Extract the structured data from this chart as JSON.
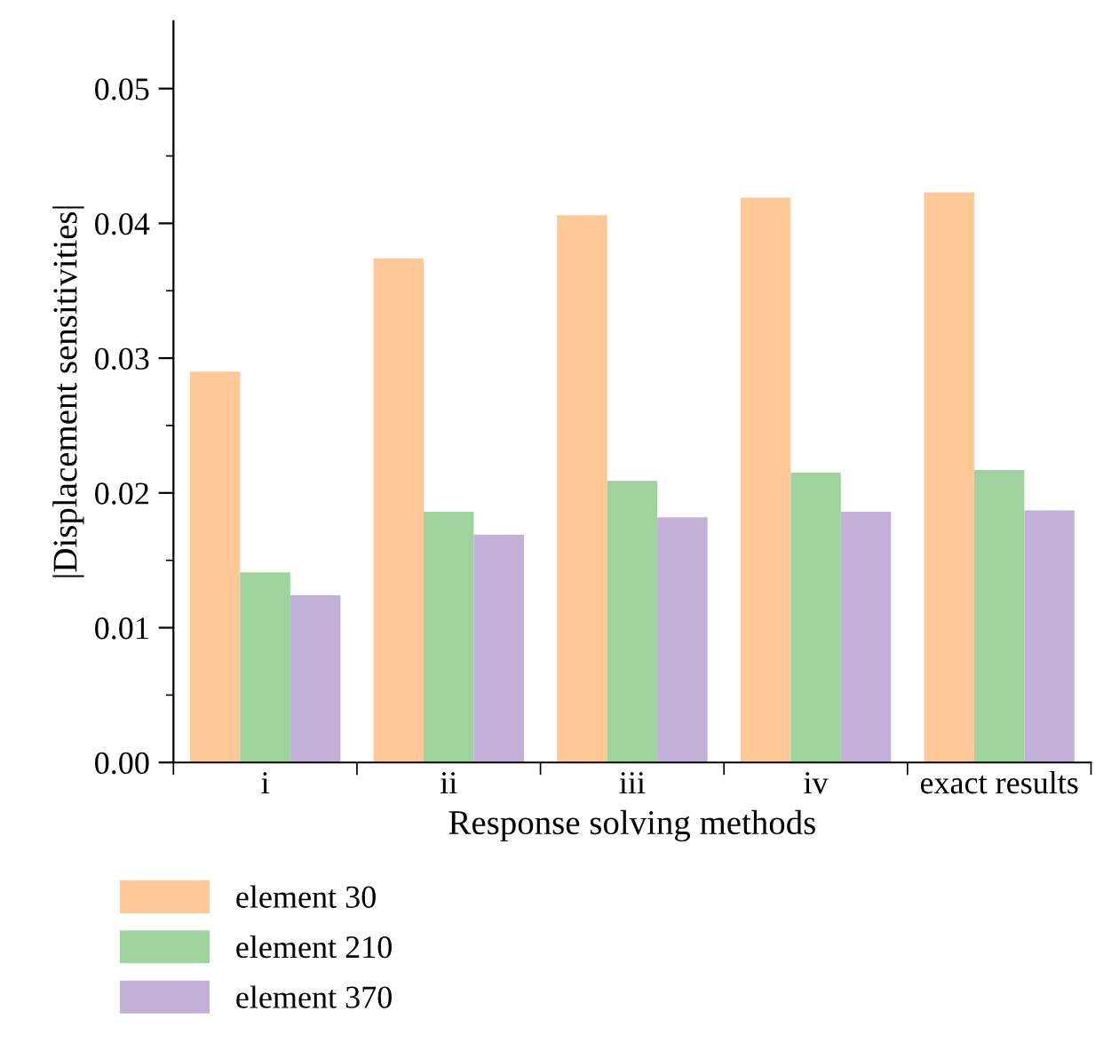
{
  "chart_data": {
    "type": "bar",
    "xlabel": "Response solving methods",
    "ylabel": "|Displacement sensitivities|",
    "categories": [
      "i",
      "ii",
      "iii",
      "iv",
      "exact results"
    ],
    "series": [
      {
        "name": "element 30",
        "color": "#ffc896",
        "values": [
          0.029,
          0.0374,
          0.0406,
          0.0419,
          0.0423
        ]
      },
      {
        "name": "element 210",
        "color": "#9fd39e",
        "values": [
          0.0141,
          0.0186,
          0.0209,
          0.0215,
          0.0217
        ]
      },
      {
        "name": "element 370",
        "color": "#c2b0d8",
        "values": [
          0.0124,
          0.0169,
          0.0182,
          0.0186,
          0.0187
        ]
      }
    ],
    "ylim": [
      0,
      0.055
    ],
    "yticks": [
      {
        "value": 0,
        "label": "0.00"
      },
      {
        "value": 0.01,
        "label": "0.01"
      },
      {
        "value": 0.02,
        "label": "0.02"
      },
      {
        "value": 0.03,
        "label": "0.03"
      },
      {
        "value": 0.04,
        "label": "0.04"
      },
      {
        "value": 0.05,
        "label": "0.05"
      }
    ],
    "grid": false,
    "legend": "bottom"
  }
}
